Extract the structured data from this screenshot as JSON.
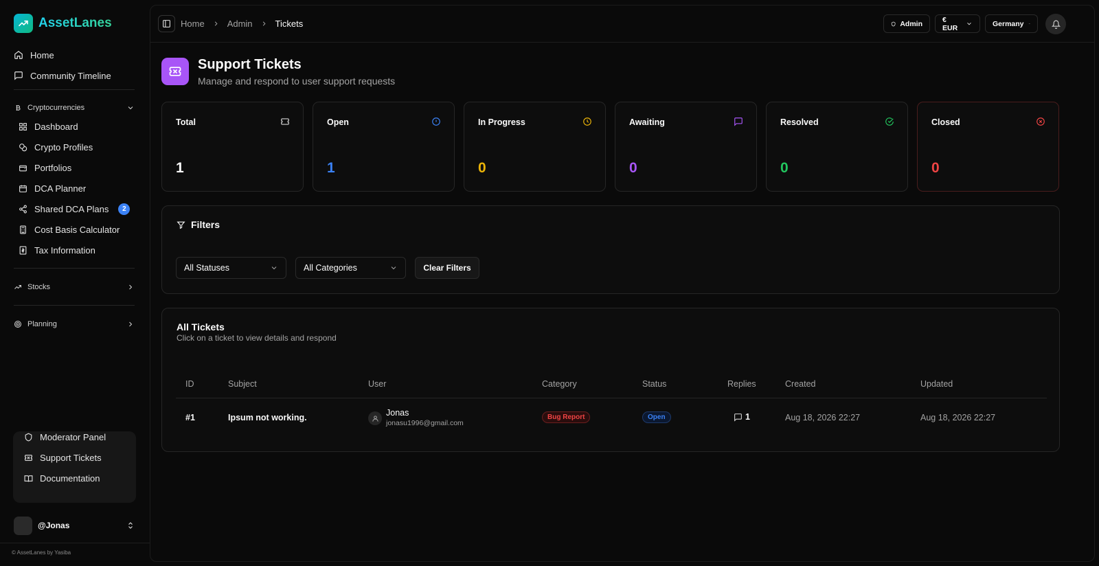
{
  "app": {
    "name": "AssetLanes",
    "credit": "© AssetLanes by Yasiba"
  },
  "sidebar": {
    "top_items": [
      {
        "label": "Home"
      },
      {
        "label": "Community Timeline"
      }
    ],
    "crypto_section": "Cryptocurrencies",
    "crypto_items": [
      {
        "label": "Dashboard"
      },
      {
        "label": "Crypto Profiles"
      },
      {
        "label": "Portfolios"
      },
      {
        "label": "DCA Planner"
      },
      {
        "label": "Shared DCA Plans",
        "badge": "2"
      },
      {
        "label": "Cost Basis Calculator"
      },
      {
        "label": "Tax Information"
      }
    ],
    "stocks_section": "Stocks",
    "planning_section": "Planning",
    "bottom_items": [
      {
        "label": "Moderator Panel"
      },
      {
        "label": "Support Tickets"
      },
      {
        "label": "Documentation"
      }
    ],
    "user": "@Jonas"
  },
  "topbar": {
    "breadcrumb": [
      "Home",
      "Admin",
      "Tickets"
    ],
    "admin_label": "Admin",
    "currency": "€ EUR",
    "country": "Germany"
  },
  "page": {
    "title": "Support Tickets",
    "subtitle": "Manage and respond to user support requests"
  },
  "stats": [
    {
      "label": "Total",
      "value": "1",
      "color": "#fafafa"
    },
    {
      "label": "Open",
      "value": "1",
      "color": "#3b82f6"
    },
    {
      "label": "In Progress",
      "value": "0",
      "color": "#eab308"
    },
    {
      "label": "Awaiting",
      "value": "0",
      "color": "#a855f7"
    },
    {
      "label": "Resolved",
      "value": "0",
      "color": "#22c55e"
    },
    {
      "label": "Closed",
      "value": "0",
      "color": "#ef4444"
    }
  ],
  "filters": {
    "title": "Filters",
    "status": "All Statuses",
    "category": "All Categories",
    "clear": "Clear Filters"
  },
  "tickets": {
    "title": "All Tickets",
    "subtitle": "Click on a ticket to view details and respond",
    "columns": [
      "ID",
      "Subject",
      "User",
      "Category",
      "Status",
      "Replies",
      "Created",
      "Updated"
    ],
    "rows": [
      {
        "id": "#1",
        "subject": "Ipsum not working.",
        "user_name": "Jonas",
        "user_email": "jonasu1996@gmail.com",
        "category": "Bug Report",
        "status": "Open",
        "replies": "1",
        "created": "Aug 18, 2026 22:27",
        "updated": "Aug 18, 2026 22:27"
      }
    ]
  }
}
